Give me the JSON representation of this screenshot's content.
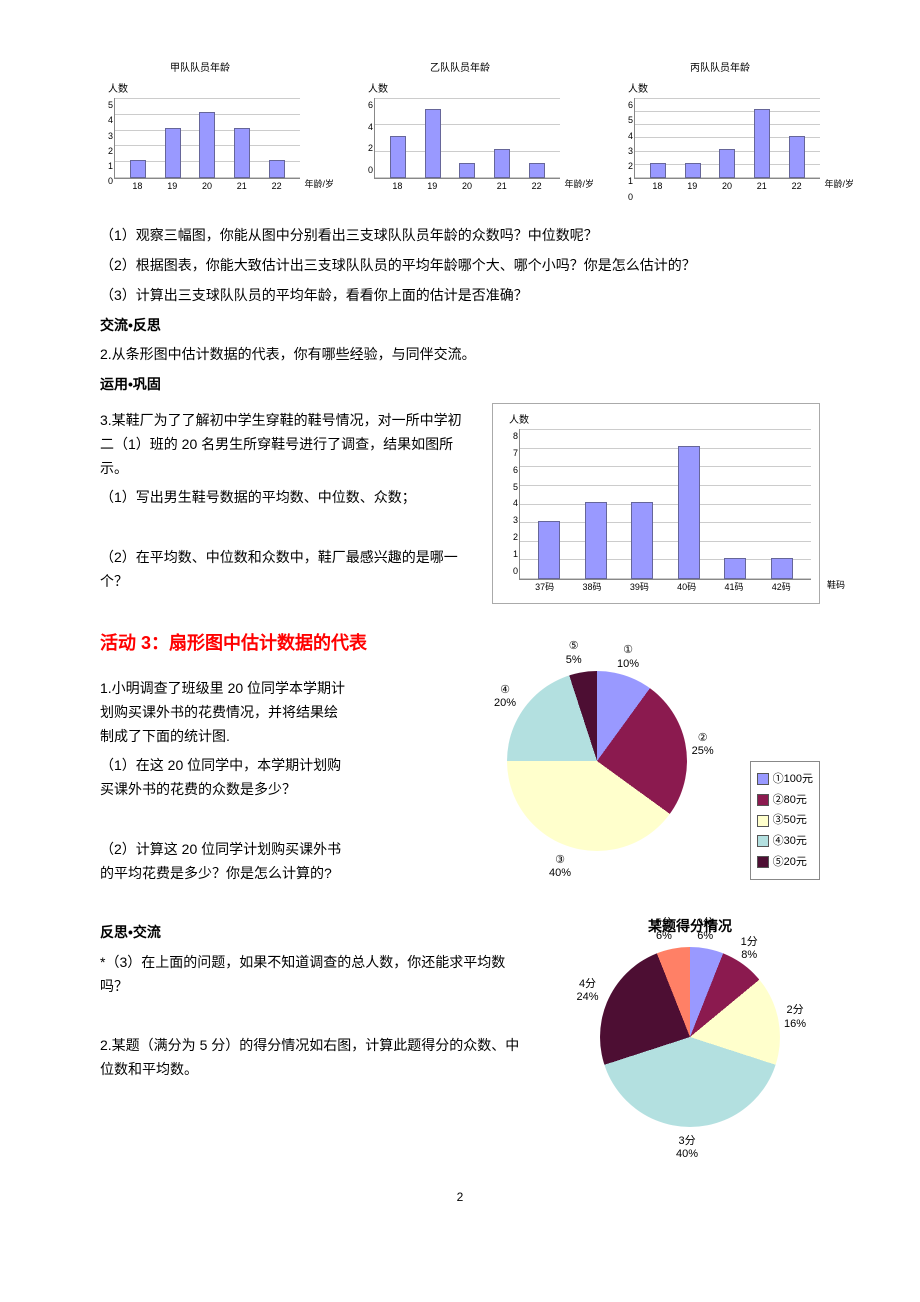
{
  "chartsRow": [
    {
      "title": "甲队队员年龄",
      "ylabel": "人数",
      "ymax": 5,
      "yticks": [
        "5",
        "4",
        "3",
        "2",
        "1",
        "0"
      ],
      "categories": [
        "18",
        "19",
        "20",
        "21",
        "22"
      ],
      "values": [
        1,
        3,
        4,
        3,
        1
      ],
      "xlabel": "年龄/岁",
      "bar_color": "#9999ff",
      "border_color": "#666699"
    },
    {
      "title": "乙队队员年龄",
      "ylabel": "人数",
      "ymax": 6,
      "yticks": [
        "6",
        "4",
        "2",
        "0"
      ],
      "categories": [
        "18",
        "19",
        "20",
        "21",
        "22"
      ],
      "values": [
        3,
        5,
        1,
        2,
        1
      ],
      "xlabel": "年龄/岁",
      "bar_color": "#9999ff",
      "border_color": "#666699"
    },
    {
      "title": "丙队队员年龄",
      "ylabel": "人数",
      "ymax": 6,
      "yticks": [
        "6",
        "5",
        "4",
        "3",
        "2",
        "1",
        "0"
      ],
      "categories": [
        "18",
        "19",
        "20",
        "21",
        "22"
      ],
      "values": [
        1,
        1,
        2,
        5,
        3
      ],
      "xlabel": "年龄/岁",
      "bar_color": "#9999ff",
      "border_color": "#666699"
    }
  ],
  "q1": "（1）观察三幅图，你能从图中分别看出三支球队队员年龄的众数吗？中位数呢？",
  "q2": "（2）根据图表，你能大致估计出三支球队队员的平均年龄哪个大、哪个小吗？你是怎么估计的？",
  "q3": "（3）计算出三支球队队员的平均年龄，看看你上面的估计是否准确？",
  "sec_jiaoliu": {
    "heading": "交流•反思",
    "p1": "2.从条形图中估计数据的代表，你有哪些经验，与同伴交流。"
  },
  "sec_yunyong": {
    "heading": "运用•巩固",
    "p1": "3.某鞋厂为了了解初中学生穿鞋的鞋号情况，对一所中学初二（1）班的 20 名男生所穿鞋号进行了调查，结果如图所示。",
    "q1": "（1）写出男生鞋号数据的平均数、中位数、众数；",
    "q2": "（2）在平均数、中位数和众数中，鞋厂最感兴趣的是哪一个？"
  },
  "shoe_chart": {
    "ylabel": "人数",
    "ymax": 8,
    "yticks": [
      "8",
      "7",
      "6",
      "5",
      "4",
      "3",
      "2",
      "1",
      "0"
    ],
    "categories": [
      "37码",
      "38码",
      "39码",
      "40码",
      "41码",
      "42码"
    ],
    "values": [
      3,
      4,
      4,
      7,
      1,
      1
    ],
    "xlabel": "鞋码",
    "bar_color": "#9999ff",
    "border_color": "#666699"
  },
  "activity3_heading": "活动 3：扇形图中估计数据的代表",
  "activity3": {
    "p1": "1.小明调查了班级里 20 位同学本学期计划购买课外书的花费情况，并将结果绘制成了下面的统计图.",
    "q1": "（1）在这 20 位同学中，本学期计划购买课外书的花费的众数是多少？",
    "q2": "（2）计算这 20 位同学计划购买课外书的平均花费是多少？你是怎么计算的?"
  },
  "pie1": {
    "slices": [
      {
        "label": "①",
        "sub": "10%",
        "pct": 10,
        "color": "#9999ff",
        "legend": "①100元",
        "angle": 18
      },
      {
        "label": "②",
        "sub": "25%",
        "pct": 25,
        "color": "#8b1a4f",
        "legend": "②80元",
        "angle": 81
      },
      {
        "label": "③",
        "sub": "40%",
        "pct": 40,
        "color": "#ffffcc",
        "legend": "③50元",
        "angle": 198
      },
      {
        "label": "④",
        "sub": "20%",
        "pct": 20,
        "color": "#b3e0e0",
        "legend": "④30元",
        "angle": 306
      },
      {
        "label": "⑤",
        "sub": "5%",
        "pct": 5,
        "color": "#4d0e33",
        "legend": "⑤20元",
        "angle": 351
      }
    ]
  },
  "sec_fansi": {
    "heading": "反思•交流",
    "p1": "*（3）在上面的问题，如果不知道调查的总人数，你还能求平均数吗？",
    "p2": "2.某题（满分为 5 分）的得分情况如右图，计算此题得分的众数、中位数和平均数。"
  },
  "pie2": {
    "title": "某题得分情况",
    "slices": [
      {
        "label": "0分",
        "sub": "6%",
        "pct": 6,
        "color": "#9999ff"
      },
      {
        "label": "1分",
        "sub": "8%",
        "pct": 8,
        "color": "#8b1a4f"
      },
      {
        "label": "2分",
        "sub": "16%",
        "pct": 16,
        "color": "#ffffcc"
      },
      {
        "label": "3分",
        "sub": "40%",
        "pct": 40,
        "color": "#b3e0e0"
      },
      {
        "label": "4分",
        "sub": "24%",
        "pct": 24,
        "color": "#4d0e33"
      },
      {
        "label": "5分",
        "sub": "6%",
        "pct": 6,
        "color": "#ff8066"
      }
    ]
  },
  "page_number": "2"
}
